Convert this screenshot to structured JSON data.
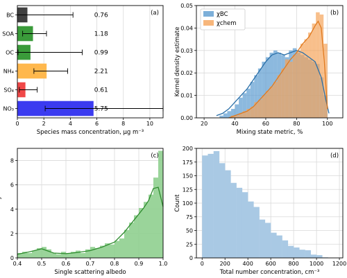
{
  "chart_data": [
    {
      "id": "a",
      "type": "bar",
      "orientation": "horizontal",
      "panel_label": "(a)",
      "xlabel": "Species mass concentration, μg m⁻³",
      "ylabel": "",
      "xlim": [
        0,
        11
      ],
      "xticks": [
        0,
        2,
        4,
        6,
        8,
        10
      ],
      "categories": [
        "BC",
        "SOA",
        "OC",
        "NH₄",
        "SO₄",
        "NO₃"
      ],
      "values": [
        0.76,
        1.18,
        0.99,
        2.21,
        0.61,
        5.75
      ],
      "value_labels": [
        "0.76",
        "1.18",
        "0.99",
        "2.21",
        "0.61",
        "5.75"
      ],
      "error_low": [
        0.0,
        0.4,
        0.05,
        1.25,
        0.15,
        2.1
      ],
      "error_high": [
        4.2,
        2.2,
        4.9,
        3.8,
        1.5,
        11.0
      ],
      "colors": [
        "#404040",
        "#3a9b3a",
        "#3a9b3a",
        "#ffb84d",
        "#f04848",
        "#3b3bf0"
      ],
      "grid": true
    },
    {
      "id": "b",
      "type": "area",
      "panel_label": "(b)",
      "xlabel": "Mixing state metric, %",
      "ylabel": "Kernel density estimate",
      "xlim": [
        15,
        110
      ],
      "ylim": [
        0,
        0.05
      ],
      "xticks": [
        20,
        40,
        60,
        80,
        100
      ],
      "yticks": [
        0.0,
        0.01,
        0.02,
        0.03,
        0.04,
        0.05
      ],
      "ytick_labels": [
        "0.00",
        "0.01",
        "0.02",
        "0.03",
        "0.04",
        "0.05"
      ],
      "legend": "top-left",
      "grid": true,
      "series": [
        {
          "name": "χBC",
          "color": "#5b9bd0",
          "line_color": "#2a6fa8",
          "hist_x": [
            30,
            32.5,
            35,
            37.5,
            40,
            42.5,
            45,
            47.5,
            50,
            52.5,
            55,
            57.5,
            60,
            62.5,
            65,
            67.5,
            70,
            72.5,
            75,
            77.5,
            80,
            82.5,
            85,
            87.5,
            90,
            92.5,
            95,
            97.5
          ],
          "hist_w": 2.5,
          "hist_y": [
            0.001,
            0.002,
            0.003,
            0.004,
            0.006,
            0.009,
            0.011,
            0.013,
            0.016,
            0.019,
            0.022,
            0.025,
            0.027,
            0.029,
            0.03,
            0.029,
            0.028,
            0.027,
            0.03,
            0.031,
            0.029,
            0.028,
            0.027,
            0.026,
            0.025,
            0.024,
            0.018,
            0.01
          ],
          "kde_x": [
            28,
            32,
            36,
            40,
            44,
            48,
            52,
            56,
            60,
            64,
            68,
            72,
            76,
            80,
            84,
            88,
            92,
            96,
            99,
            101
          ],
          "kde_y": [
            0.001,
            0.002,
            0.004,
            0.007,
            0.01,
            0.013,
            0.017,
            0.021,
            0.025,
            0.028,
            0.029,
            0.028,
            0.029,
            0.03,
            0.029,
            0.027,
            0.025,
            0.018,
            0.008,
            0.002
          ]
        },
        {
          "name": "χchem",
          "color": "#f5a45a",
          "line_color": "#e07a1f",
          "hist_x": [
            37.5,
            40,
            42.5,
            45,
            47.5,
            50,
            52.5,
            55,
            57.5,
            60,
            62.5,
            65,
            67.5,
            70,
            72.5,
            75,
            77.5,
            80,
            82.5,
            85,
            87.5,
            90,
            92.5,
            95,
            97.5
          ],
          "hist_w": 2.5,
          "hist_y": [
            0.001,
            0.001,
            0.002,
            0.003,
            0.004,
            0.005,
            0.007,
            0.008,
            0.01,
            0.012,
            0.014,
            0.016,
            0.019,
            0.022,
            0.026,
            0.025,
            0.028,
            0.03,
            0.033,
            0.035,
            0.038,
            0.042,
            0.047,
            0.046,
            0.033
          ],
          "kde_x": [
            36,
            40,
            44,
            48,
            52,
            56,
            60,
            64,
            68,
            72,
            76,
            80,
            84,
            88,
            92,
            94,
            96,
            98,
            100
          ],
          "kde_y": [
            0.0,
            0.001,
            0.002,
            0.003,
            0.005,
            0.008,
            0.011,
            0.014,
            0.018,
            0.022,
            0.026,
            0.029,
            0.033,
            0.036,
            0.041,
            0.043,
            0.04,
            0.025,
            0.004
          ]
        }
      ]
    },
    {
      "id": "c",
      "type": "area",
      "panel_label": "(c)",
      "xlabel": "Single scattering albedo",
      "ylabel": "Kernel density estimate",
      "xlim": [
        0.4,
        1.0
      ],
      "ylim": [
        0,
        9
      ],
      "xticks": [
        0.4,
        0.5,
        0.6,
        0.7,
        0.8,
        0.9,
        1.0
      ],
      "xtick_labels": [
        "0.4",
        "0.5",
        "0.6",
        "0.7",
        "0.8",
        "0.9",
        "1.0"
      ],
      "yticks": [
        0,
        2,
        4,
        6,
        8
      ],
      "grid": true,
      "series": [
        {
          "color": "#8fcf8f",
          "line_color": "#2e8b2e",
          "hist_x": [
            0.4,
            0.42,
            0.44,
            0.46,
            0.48,
            0.5,
            0.52,
            0.54,
            0.56,
            0.58,
            0.6,
            0.62,
            0.64,
            0.66,
            0.68,
            0.7,
            0.72,
            0.74,
            0.76,
            0.78,
            0.8,
            0.82,
            0.84,
            0.86,
            0.88,
            0.9,
            0.92,
            0.94,
            0.96,
            0.98
          ],
          "hist_w": 0.02,
          "hist_y": [
            0.4,
            0.5,
            0.4,
            0.6,
            0.8,
            0.9,
            0.7,
            0.4,
            0.3,
            0.5,
            0.4,
            0.5,
            0.6,
            0.4,
            0.7,
            0.9,
            0.8,
            1.0,
            1.2,
            1.1,
            1.4,
            1.6,
            2.3,
            2.9,
            3.5,
            4.1,
            4.6,
            5.2,
            6.6,
            8.8
          ],
          "kde_x": [
            0.4,
            0.45,
            0.5,
            0.55,
            0.6,
            0.65,
            0.7,
            0.75,
            0.8,
            0.84,
            0.88,
            0.9,
            0.92,
            0.94,
            0.96,
            0.98,
            1.0
          ],
          "kde_y": [
            0.3,
            0.5,
            0.75,
            0.4,
            0.35,
            0.45,
            0.6,
            0.9,
            1.3,
            2.1,
            3.1,
            3.6,
            4.1,
            4.7,
            5.7,
            5.8,
            4.2
          ]
        }
      ]
    },
    {
      "id": "d",
      "type": "bar",
      "panel_label": "(d)",
      "xlabel": "Total number concentration, cm⁻³",
      "ylabel": "Count",
      "xlim": [
        -50,
        1230
      ],
      "ylim": [
        0,
        200
      ],
      "xticks": [
        0,
        200,
        400,
        600,
        800,
        1000,
        1200
      ],
      "yticks": [
        0,
        25,
        50,
        75,
        100,
        125,
        150,
        175,
        200
      ],
      "grid": true,
      "color": "#a9c9e4",
      "bin_start": 0,
      "bin_width": 50,
      "values": [
        187,
        190,
        195,
        173,
        160,
        137,
        128,
        120,
        103,
        93,
        70,
        64,
        46,
        41,
        32,
        22,
        19,
        15,
        14,
        6,
        5,
        1
      ]
    }
  ]
}
